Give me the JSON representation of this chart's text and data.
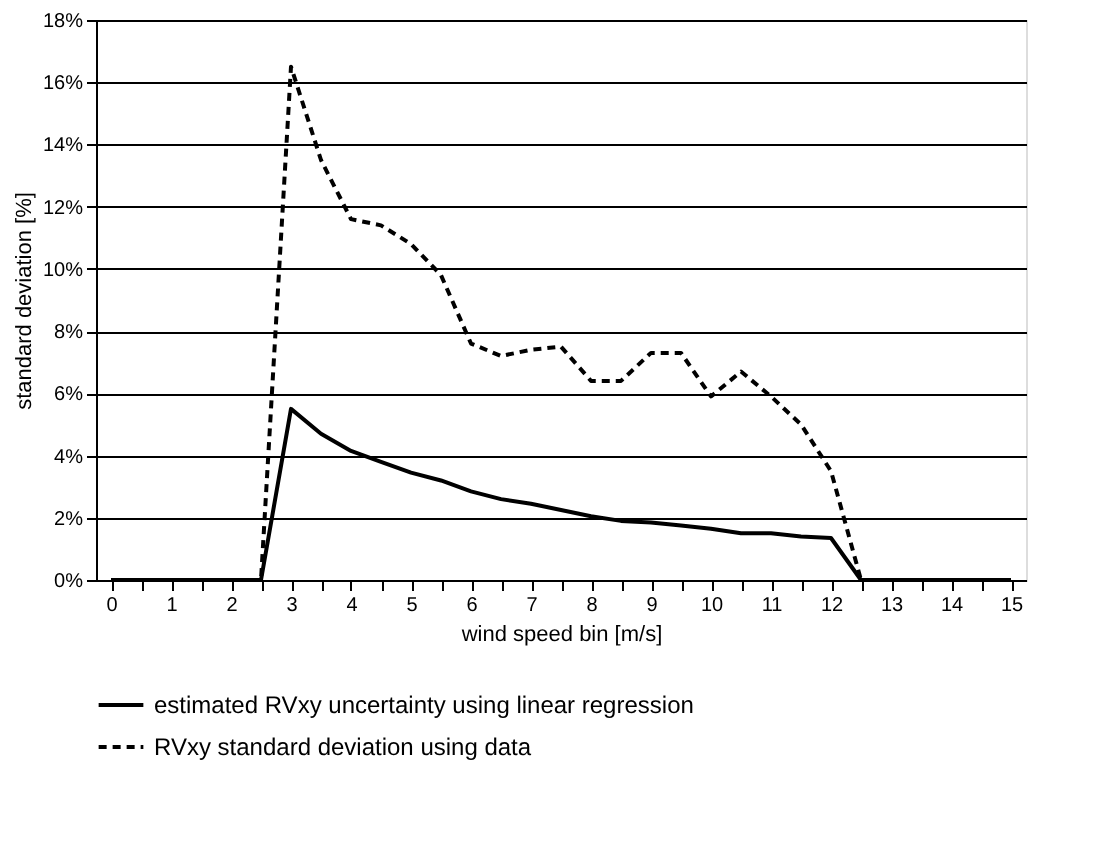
{
  "chart_data": {
    "type": "line",
    "xlabel": "wind speed bin [m/s]",
    "ylabel": "standard deviation [%]",
    "x": [
      0,
      0.5,
      1,
      1.5,
      2,
      2.5,
      3,
      3.5,
      4,
      4.5,
      5,
      5.5,
      6,
      6.5,
      7,
      7.5,
      8,
      8.5,
      9,
      9.5,
      10,
      10.5,
      11,
      11.5,
      12,
      12.5,
      13,
      13.5,
      14,
      14.5,
      15
    ],
    "series": [
      {
        "name": "estimated RVxy uncertainty using linear regression",
        "color": "#000000",
        "line_style": "solid",
        "values": [
          0,
          0,
          0,
          0,
          0,
          0,
          5.5,
          4.7,
          4.15,
          3.8,
          3.45,
          3.2,
          2.85,
          2.6,
          2.45,
          2.25,
          2.05,
          1.9,
          1.85,
          1.75,
          1.65,
          1.5,
          1.5,
          1.4,
          1.35,
          0,
          0,
          0,
          0,
          0,
          0
        ]
      },
      {
        "name": "RVxy standard deviation using data",
        "color": "#000000",
        "line_style": "dashed",
        "values": [
          0,
          0,
          0,
          0,
          0,
          0,
          16.5,
          13.5,
          11.6,
          11.4,
          10.8,
          9.8,
          7.6,
          7.2,
          7.4,
          7.5,
          6.4,
          6.4,
          7.3,
          7.3,
          5.9,
          6.7,
          5.9,
          5.0,
          3.5,
          0,
          0,
          0,
          0,
          0,
          0
        ]
      }
    ],
    "xlim": [
      -0.25,
      15.25
    ],
    "xticks": [
      0,
      {
        "value": 0.5,
        "label": null
      },
      1,
      {
        "value": 1.5,
        "label": null
      },
      2,
      {
        "value": 2.5,
        "label": null
      },
      3,
      {
        "value": 3.5,
        "label": null
      },
      4,
      {
        "value": 4.5,
        "label": null
      },
      5,
      {
        "value": 5.5,
        "label": null
      },
      6,
      {
        "value": 6.5,
        "label": null
      },
      7,
      {
        "value": 7.5,
        "label": null
      },
      8,
      {
        "value": 8.5,
        "label": null
      },
      9,
      {
        "value": 9.5,
        "label": null
      },
      10,
      {
        "value": 10.5,
        "label": null
      },
      11,
      {
        "value": 11.5,
        "label": null
      },
      12,
      {
        "value": 12.5,
        "label": null
      },
      13,
      {
        "value": 13.5,
        "label": null
      },
      14,
      {
        "value": 14.5,
        "label": null
      },
      15
    ],
    "ylim": [
      0,
      18
    ],
    "yticks": [
      {
        "value": 0,
        "label": "0%"
      },
      {
        "value": 2,
        "label": "2%"
      },
      {
        "value": 4,
        "label": "4%"
      },
      {
        "value": 6,
        "label": "6%"
      },
      {
        "value": 8,
        "label": "8%"
      },
      {
        "value": 10,
        "label": "10%"
      },
      {
        "value": 12,
        "label": "12%"
      },
      {
        "value": 14,
        "label": "14%"
      },
      {
        "value": 16,
        "label": "16%"
      },
      {
        "value": 18,
        "label": "18%"
      }
    ],
    "grid": "y",
    "legend": "bottom",
    "marker": "none"
  }
}
